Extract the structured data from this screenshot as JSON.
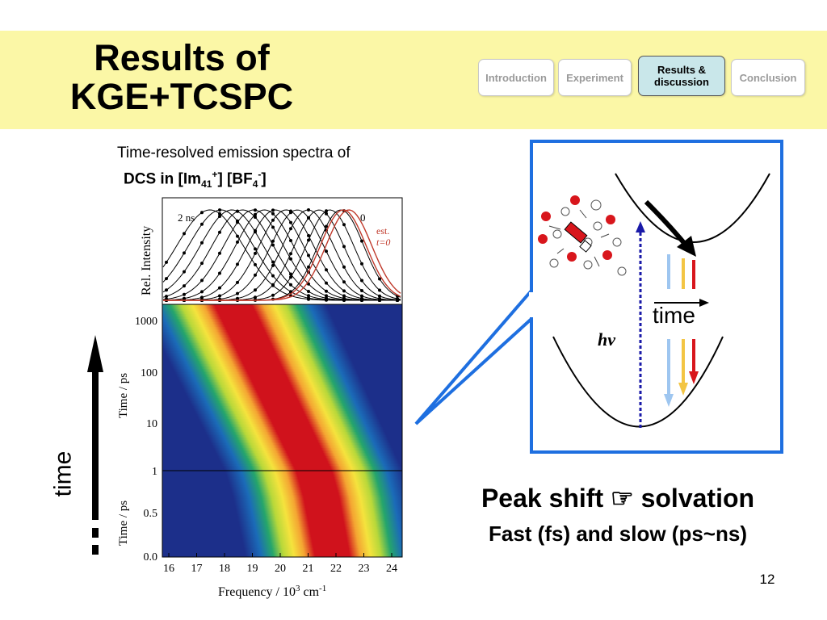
{
  "slide": {
    "title_line1": "Results of",
    "title_line2": "KGE+TCSPC",
    "page_number": "12",
    "header_color": "#fbf7a6"
  },
  "nav": [
    {
      "label": "Introduction",
      "active": false
    },
    {
      "label": "Experiment",
      "active": false
    },
    {
      "label_line1": "Results &",
      "label_line2": "discussion",
      "active": true
    },
    {
      "label": "Conclusion",
      "active": false
    }
  ],
  "caption": {
    "line1": "Time-resolved emission spectra of",
    "line2_prefix": "DCS in [Im",
    "line2_sub1": "41",
    "line2_sup1": "+",
    "line2_mid": "] [BF",
    "line2_sub2": "4",
    "line2_sup2": "-",
    "line2_end": "]"
  },
  "figure": {
    "spectra": {
      "ylabel": "Rel. Intensity",
      "label_2ns": "2 ns",
      "label_0": "0",
      "label_est": "est.",
      "label_t0": "t=0"
    },
    "heatmap": {
      "ylabel_top": "Time / ps",
      "ylabel_bottom": "Time / ps",
      "yticks_top": [
        "1000",
        "100",
        "10",
        "1"
      ],
      "yticks_bottom": [
        "1",
        "0.5",
        "0.0"
      ],
      "xticks": [
        "16",
        "17",
        "18",
        "19",
        "20",
        "21",
        "22",
        "23",
        "24"
      ],
      "xlabel": "Frequency / 10",
      "xlabel_sup3": "3",
      "xlabel_unit": " cm",
      "xlabel_sup": "-1"
    }
  },
  "side_label": "time",
  "diagram": {
    "time_label": "time",
    "hv_label": "hν",
    "border_color": "#1e6fe0"
  },
  "conclusion": {
    "peak_text": "Peak shift ☞ solvation",
    "fast_text": "Fast (fs) and slow (ps~ns)"
  }
}
